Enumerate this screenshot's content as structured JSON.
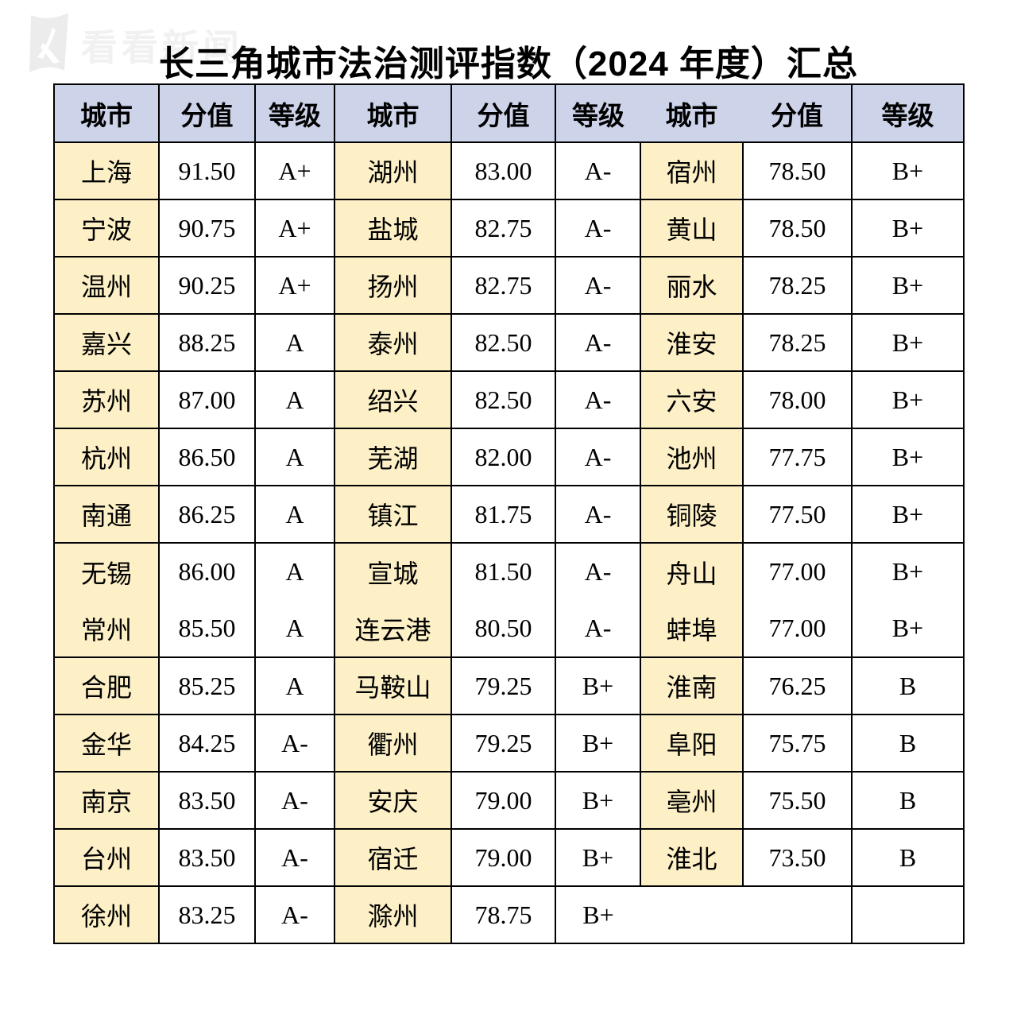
{
  "logo": {
    "icon": "knews-flag-icon",
    "text": "看看新闻"
  },
  "title": "长三角城市法治测评指数（2024 年度）汇总",
  "table": {
    "column_headers": [
      "城市",
      "分值",
      "等级",
      "城市",
      "分值",
      "等级",
      "城市",
      "分值",
      "等级"
    ],
    "colors": {
      "header_bg": "#cdd4e9",
      "city_cell_bg": "#fdf0c6",
      "border": "#000000",
      "logo_gray": "#f1f1f1"
    },
    "rows": [
      [
        "上海",
        "91.50",
        "A+",
        "湖州",
        "83.00",
        "A-",
        "宿州",
        "78.50",
        "B+"
      ],
      [
        "宁波",
        "90.75",
        "A+",
        "盐城",
        "82.75",
        "A-",
        "黄山",
        "78.50",
        "B+"
      ],
      [
        "温州",
        "90.25",
        "A+",
        "扬州",
        "82.75",
        "A-",
        "丽水",
        "78.25",
        "B+"
      ],
      [
        "嘉兴",
        "88.25",
        "A",
        "泰州",
        "82.50",
        "A-",
        "淮安",
        "78.25",
        "B+"
      ],
      [
        "苏州",
        "87.00",
        "A",
        "绍兴",
        "82.50",
        "A-",
        "六安",
        "78.00",
        "B+"
      ],
      [
        "杭州",
        "86.50",
        "A",
        "芜湖",
        "82.00",
        "A-",
        "池州",
        "77.75",
        "B+"
      ],
      [
        "南通",
        "86.25",
        "A",
        "镇江",
        "81.75",
        "A-",
        "铜陵",
        "77.50",
        "B+"
      ],
      [
        "无锡",
        "86.00",
        "A",
        "宣城",
        "81.50",
        "A-",
        "舟山",
        "77.00",
        "B+"
      ],
      [
        "常州",
        "85.50",
        "A",
        "连云港",
        "80.50",
        "A-",
        "蚌埠",
        "77.00",
        "B+"
      ],
      [
        "合肥",
        "85.25",
        "A",
        "马鞍山",
        "79.25",
        "B+",
        "淮南",
        "76.25",
        "B"
      ],
      [
        "金华",
        "84.25",
        "A-",
        "衢州",
        "79.25",
        "B+",
        "阜阳",
        "75.75",
        "B"
      ],
      [
        "南京",
        "83.50",
        "A-",
        "安庆",
        "79.00",
        "B+",
        "亳州",
        "75.50",
        "B"
      ],
      [
        "台州",
        "83.50",
        "A-",
        "宿迁",
        "79.00",
        "B+",
        "淮北",
        "73.50",
        "B"
      ],
      [
        "徐州",
        "83.25",
        "A-",
        "滁州",
        "78.75",
        "B+",
        "",
        "",
        ""
      ]
    ]
  }
}
